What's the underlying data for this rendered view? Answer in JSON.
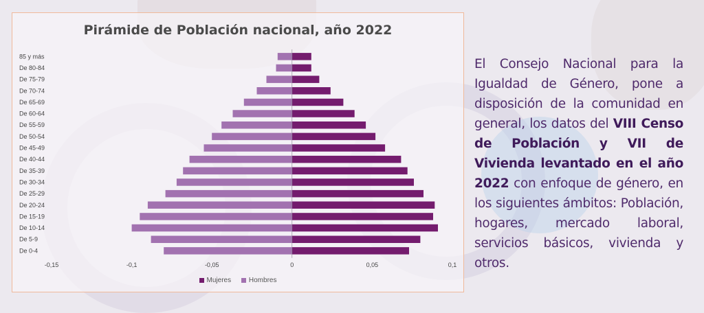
{
  "colors": {
    "mujeres": "#741c6e",
    "hombres": "#a272b0",
    "panel_border": "#f0b99a",
    "text_accent": "#4f2a6b"
  },
  "chart_data": {
    "type": "bar",
    "orientation": "horizontal",
    "title": "Pirámide de Población nacional, año  2022",
    "categories": [
      "De 0-4",
      "De 5-9",
      "De 10-14",
      "De 15-19",
      "De 20-24",
      "De 25-29",
      "De 30-34",
      "De 35-39",
      "De 40-44",
      "De 45-49",
      "De 50-54",
      "De 55-59",
      "De 60-64",
      "De 65-69",
      "De 70-74",
      "De 75-79",
      "De 80-84",
      "85 y más"
    ],
    "series": [
      {
        "name": "Mujeres",
        "values": [
          0.073,
          0.08,
          0.091,
          0.088,
          0.089,
          0.082,
          0.076,
          0.072,
          0.068,
          0.058,
          0.052,
          0.046,
          0.039,
          0.032,
          0.024,
          0.017,
          0.012,
          0.012
        ]
      },
      {
        "name": "Hombres",
        "values": [
          -0.08,
          -0.088,
          -0.1,
          -0.095,
          -0.09,
          -0.079,
          -0.072,
          -0.068,
          -0.064,
          -0.055,
          -0.05,
          -0.044,
          -0.037,
          -0.03,
          -0.022,
          -0.016,
          -0.01,
          -0.009
        ]
      }
    ],
    "xlim": [
      -0.15,
      0.1
    ],
    "xticks": [
      "-0,15",
      "-0,1",
      "-0,05",
      "0",
      "0,05",
      "0,1"
    ],
    "xtick_values": [
      -0.15,
      -0.1,
      -0.05,
      0,
      0.05,
      0.1
    ],
    "legend_position": "bottom",
    "grid": false
  },
  "legend": {
    "mujeres": "Mujeres",
    "hombres": "Hombres"
  },
  "side_text": {
    "part1": "El Consejo Nacional para la Igualdad de Género, pone a disposición de la comunidad en general, los datos del ",
    "bold": "VIII Censo de Población y VII de Vivienda levantado en el año 2022",
    "part2": " con enfoque de género, en los siguientes ámbitos: Población, hogares, mercado laboral, servicios básicos, vivienda y otros."
  }
}
